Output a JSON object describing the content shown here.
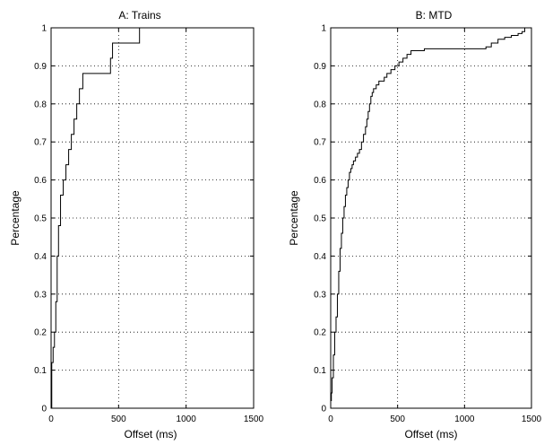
{
  "chart_data": [
    {
      "type": "line",
      "title": "A: Trains",
      "xlabel": "Offset (ms)",
      "ylabel": "Percentage",
      "xlim": [
        0,
        1500
      ],
      "ylim": [
        0,
        1
      ],
      "grid": true,
      "line_color": "#000000",
      "xticks": [
        "0",
        "500",
        "1000",
        "1500"
      ],
      "yticks": [
        "0",
        "0.1",
        "0.2",
        "0.3",
        "0.4",
        "0.5",
        "0.6",
        "0.7",
        "0.8",
        "0.9",
        "1"
      ],
      "series": [
        {
          "step": true,
          "x": [
            5,
            15,
            25,
            35,
            45,
            55,
            70,
            90,
            110,
            130,
            150,
            170,
            190,
            210,
            235,
            260,
            300,
            440,
            455,
            640,
            655
          ],
          "y": [
            0.12,
            0.16,
            0.2,
            0.28,
            0.4,
            0.48,
            0.56,
            0.6,
            0.64,
            0.68,
            0.72,
            0.76,
            0.8,
            0.84,
            0.88,
            0.88,
            0.88,
            0.92,
            0.96,
            0.96,
            1.0
          ]
        }
      ]
    },
    {
      "type": "line",
      "title": "B: MTD",
      "xlabel": "Offset (ms)",
      "ylabel": "Percentage",
      "xlim": [
        0,
        1500
      ],
      "ylim": [
        0,
        1
      ],
      "grid": true,
      "line_color": "#000000",
      "xticks": [
        "0",
        "500",
        "1000",
        "1500"
      ],
      "yticks": [
        "0",
        "0.1",
        "0.2",
        "0.3",
        "0.4",
        "0.5",
        "0.6",
        "0.7",
        "0.8",
        "0.9",
        "1"
      ],
      "series": [
        {
          "step": true,
          "x": [
            0,
            5,
            10,
            20,
            30,
            40,
            50,
            60,
            70,
            80,
            90,
            100,
            110,
            120,
            130,
            140,
            150,
            160,
            170,
            185,
            200,
            215,
            230,
            245,
            260,
            270,
            280,
            290,
            300,
            310,
            320,
            340,
            360,
            380,
            400,
            420,
            450,
            480,
            510,
            540,
            570,
            600,
            650,
            700,
            800,
            900,
            1000,
            1100,
            1160,
            1200,
            1250,
            1300,
            1350,
            1400,
            1430,
            1450
          ],
          "y": [
            0.02,
            0.04,
            0.08,
            0.14,
            0.2,
            0.24,
            0.3,
            0.36,
            0.42,
            0.46,
            0.5,
            0.53,
            0.56,
            0.58,
            0.6,
            0.62,
            0.63,
            0.64,
            0.65,
            0.66,
            0.67,
            0.68,
            0.7,
            0.72,
            0.74,
            0.76,
            0.78,
            0.8,
            0.82,
            0.83,
            0.84,
            0.85,
            0.86,
            0.86,
            0.87,
            0.88,
            0.89,
            0.9,
            0.91,
            0.92,
            0.93,
            0.94,
            0.94,
            0.945,
            0.945,
            0.945,
            0.945,
            0.945,
            0.95,
            0.96,
            0.97,
            0.975,
            0.98,
            0.985,
            0.99,
            1.0
          ]
        }
      ]
    }
  ]
}
